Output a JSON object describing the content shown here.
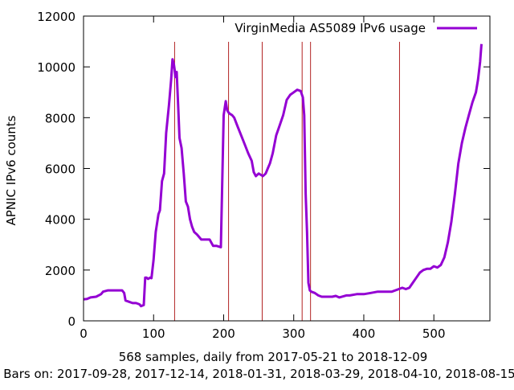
{
  "chart_data": {
    "type": "line",
    "title": "",
    "xlabel": "568 samples, daily from 2017-05-21 to 2018-12-09",
    "ylabel": "APNIC IPv6 counts",
    "footer": "Bars on:  2017-09-28, 2017-12-14, 2018-01-31, 2018-03-29, 2018-04-10, 2018-08-15",
    "xlim": [
      0,
      580
    ],
    "ylim": [
      0,
      12000
    ],
    "x_ticks": [
      0,
      100,
      200,
      300,
      400,
      500
    ],
    "y_ticks": [
      0,
      2000,
      4000,
      6000,
      8000,
      10000,
      12000
    ],
    "grid": false,
    "legend_position": "top-right",
    "vertical_bars_x": [
      130,
      207,
      255,
      312,
      324,
      451
    ],
    "series": [
      {
        "name": "VirginMedia AS5089 IPv6 usage",
        "color": "#9400d3",
        "x": [
          0,
          5,
          10,
          18,
          25,
          28,
          35,
          45,
          55,
          58,
          60,
          65,
          70,
          75,
          80,
          82,
          86,
          88,
          90,
          92,
          95,
          97,
          100,
          103,
          107,
          109,
          112,
          115,
          118,
          122,
          125,
          127,
          129,
          130,
          131,
          133,
          135,
          137,
          140,
          143,
          146,
          149,
          152,
          155,
          158,
          162,
          168,
          175,
          180,
          185,
          190,
          196,
          200,
          203,
          205,
          207,
          209,
          212,
          215,
          220,
          225,
          230,
          235,
          240,
          243,
          246,
          250,
          253,
          256,
          260,
          263,
          266,
          270,
          275,
          280,
          285,
          290,
          295,
          300,
          305,
          310,
          313,
          315,
          317,
          319,
          321,
          323,
          325,
          330,
          335,
          340,
          345,
          350,
          355,
          360,
          365,
          370,
          375,
          380,
          390,
          400,
          410,
          420,
          430,
          440,
          450,
          455,
          460,
          465,
          470,
          475,
          480,
          485,
          490,
          495,
          500,
          505,
          510,
          515,
          520,
          525,
          530,
          535,
          540,
          545,
          550,
          555,
          560,
          563,
          566,
          568
        ],
        "values": [
          850,
          860,
          920,
          950,
          1050,
          1150,
          1200,
          1200,
          1200,
          1100,
          800,
          750,
          700,
          700,
          650,
          580,
          620,
          1700,
          1700,
          1650,
          1700,
          1680,
          2400,
          3500,
          4200,
          4350,
          5500,
          5800,
          7400,
          8500,
          9500,
          10300,
          10100,
          9900,
          9600,
          9800,
          8500,
          7200,
          6800,
          5800,
          4700,
          4500,
          4000,
          3700,
          3500,
          3400,
          3200,
          3200,
          3200,
          2950,
          2950,
          2900,
          8100,
          8650,
          8300,
          8200,
          8150,
          8100,
          8000,
          7650,
          7300,
          6950,
          6600,
          6300,
          5850,
          5700,
          5800,
          5750,
          5700,
          5800,
          6000,
          6200,
          6600,
          7300,
          7700,
          8100,
          8700,
          8900,
          9000,
          9100,
          9050,
          8800,
          8100,
          5000,
          3500,
          1500,
          1200,
          1150,
          1100,
          1000,
          950,
          950,
          950,
          950,
          980,
          920,
          960,
          1000,
          1000,
          1050,
          1050,
          1100,
          1150,
          1150,
          1150,
          1250,
          1300,
          1250,
          1300,
          1500,
          1700,
          1900,
          2000,
          2050,
          2050,
          2150,
          2100,
          2200,
          2500,
          3100,
          3900,
          5000,
          6200,
          7000,
          7600,
          8100,
          8600,
          9000,
          9500,
          10200,
          10900
        ]
      }
    ]
  }
}
